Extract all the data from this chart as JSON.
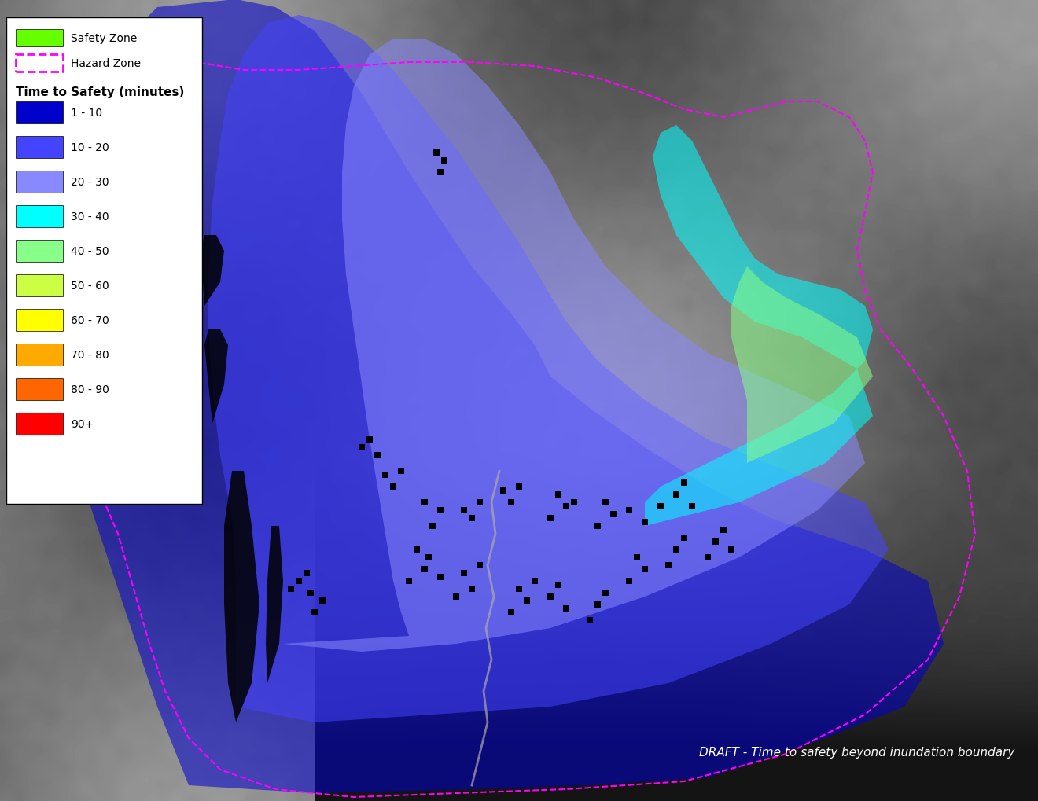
{
  "figure_size": [
    13.2,
    10.2
  ],
  "dpi": 100,
  "background_color": "#1a1a1a",
  "title_text": "DRAFT - Time to safety beyond inundation boundary",
  "title_color": "#ffffff",
  "title_fontsize": 11,
  "legend_title": "Time to Safety (minutes)",
  "legend_title_fontsize": 11,
  "legend_fontsize": 10,
  "legend_colors": [
    "#0000cc",
    "#4444ff",
    "#8888ff",
    "#00ffff",
    "#88ff88",
    "#ccff44",
    "#ffff00",
    "#ffaa00",
    "#ff6600",
    "#ff0000"
  ],
  "legend_labels": [
    "1 - 10",
    "10 - 20",
    "20 - 30",
    "30 - 40",
    "40 - 50",
    "50 - 60",
    "60 - 70",
    "70 - 80",
    "80 - 90",
    "90+"
  ],
  "safety_zone_color": "#66ff00",
  "hazard_zone_color": "#ff00ff",
  "zone_alpha": 0.55,
  "map_bg_color": "#2a2a2a"
}
